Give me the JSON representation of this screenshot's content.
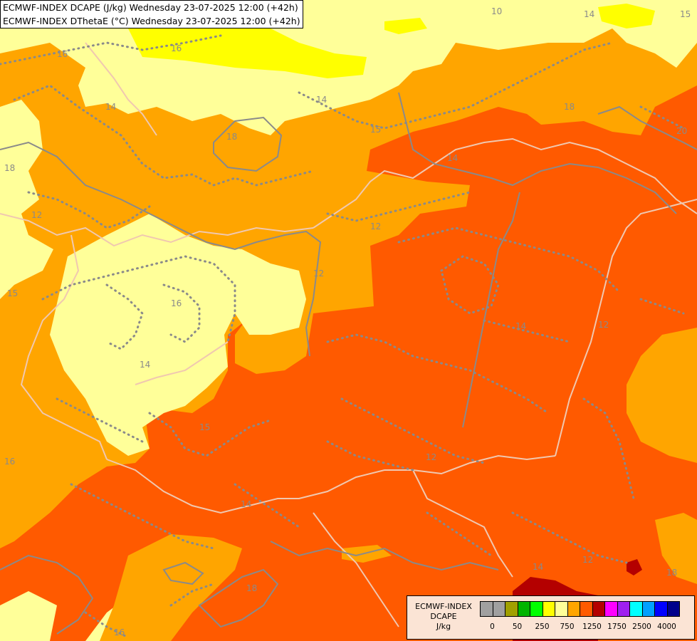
{
  "header": {
    "line1": "ECMWF-INDEX DCAPE (J/kg) Wednesday 23-07-2025 12:00 (+42h)",
    "line2": "ECMWF-INDEX DThetaE (°C) Wednesday 23-07-2025 12:00 (+42h)"
  },
  "legend": {
    "title_lines": [
      "ECMWF-INDEX",
      "DCAPE",
      "J/kg"
    ],
    "colors": [
      "#a0a0a0",
      "#a0a0a0",
      "#a0a000",
      "#00b400",
      "#00ff00",
      "#ffff00",
      "#ffff99",
      "#ffa500",
      "#ff5a00",
      "#b40000",
      "#ff00ff",
      "#a020f0",
      "#00ffff",
      "#00a0ff",
      "#0000ff",
      "#00008b"
    ],
    "tick_labels": [
      "0",
      "50",
      "250",
      "750",
      "1250",
      "1750",
      "2500",
      "4000"
    ]
  },
  "palette": {
    "pale_yellow": "#ffff99",
    "yellow": "#ffff00",
    "orange": "#ffa500",
    "dark_orange": "#ff5a00",
    "dark_red": "#b40000",
    "contour_grey": "#8a8a8a",
    "border_color": "#f0c8b0"
  },
  "contour_labels": [
    "16",
    "14",
    "18",
    "16",
    "15",
    "14",
    "10",
    "14",
    "15",
    "18",
    "20",
    "18",
    "12",
    "12",
    "12",
    "15",
    "16",
    "14",
    "14",
    "12",
    "15",
    "16",
    "14",
    "12",
    "14",
    "14",
    "12",
    "18",
    "16",
    "18"
  ]
}
